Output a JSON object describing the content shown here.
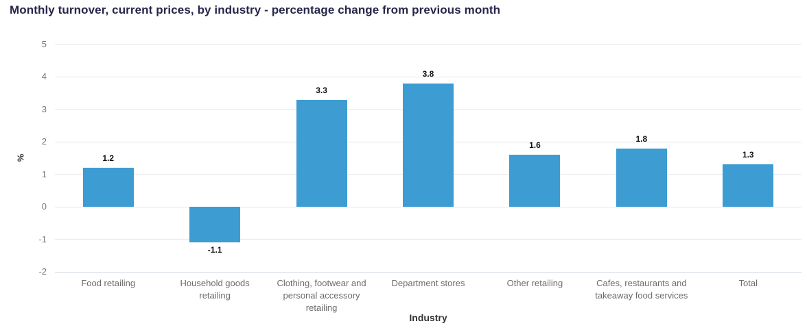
{
  "chart_data": {
    "type": "bar",
    "title": "Monthly turnover, current prices, by industry - percentage change from previous month",
    "xlabel": "Industry",
    "ylabel": "%",
    "categories": [
      "Food retailing",
      "Household goods retailing",
      "Clothing, footwear and personal accessory retailing",
      "Department stores",
      "Other retailing",
      "Cafes, restaurants and takeaway food services",
      "Total"
    ],
    "values": [
      1.2,
      -1.1,
      3.3,
      3.8,
      1.6,
      1.8,
      1.3
    ],
    "data_labels": [
      "1.2",
      "-1.1",
      "3.3",
      "3.8",
      "1.6",
      "1.8",
      "1.3"
    ],
    "yticks": [
      5,
      4,
      3,
      2,
      1,
      0,
      -1,
      -2
    ],
    "ylim": [
      -2,
      5
    ],
    "grid": true,
    "legend": false,
    "colors": {
      "bar": "#3d9cd2",
      "title": "#26264a",
      "tick_label": "#767676",
      "category_label": "#6b6b6b",
      "gridline": "#e8e8e8",
      "axis_line": "#ccd4e4",
      "value_label": "#111111",
      "axis_title": "#333333",
      "background": "#ffffff"
    }
  }
}
